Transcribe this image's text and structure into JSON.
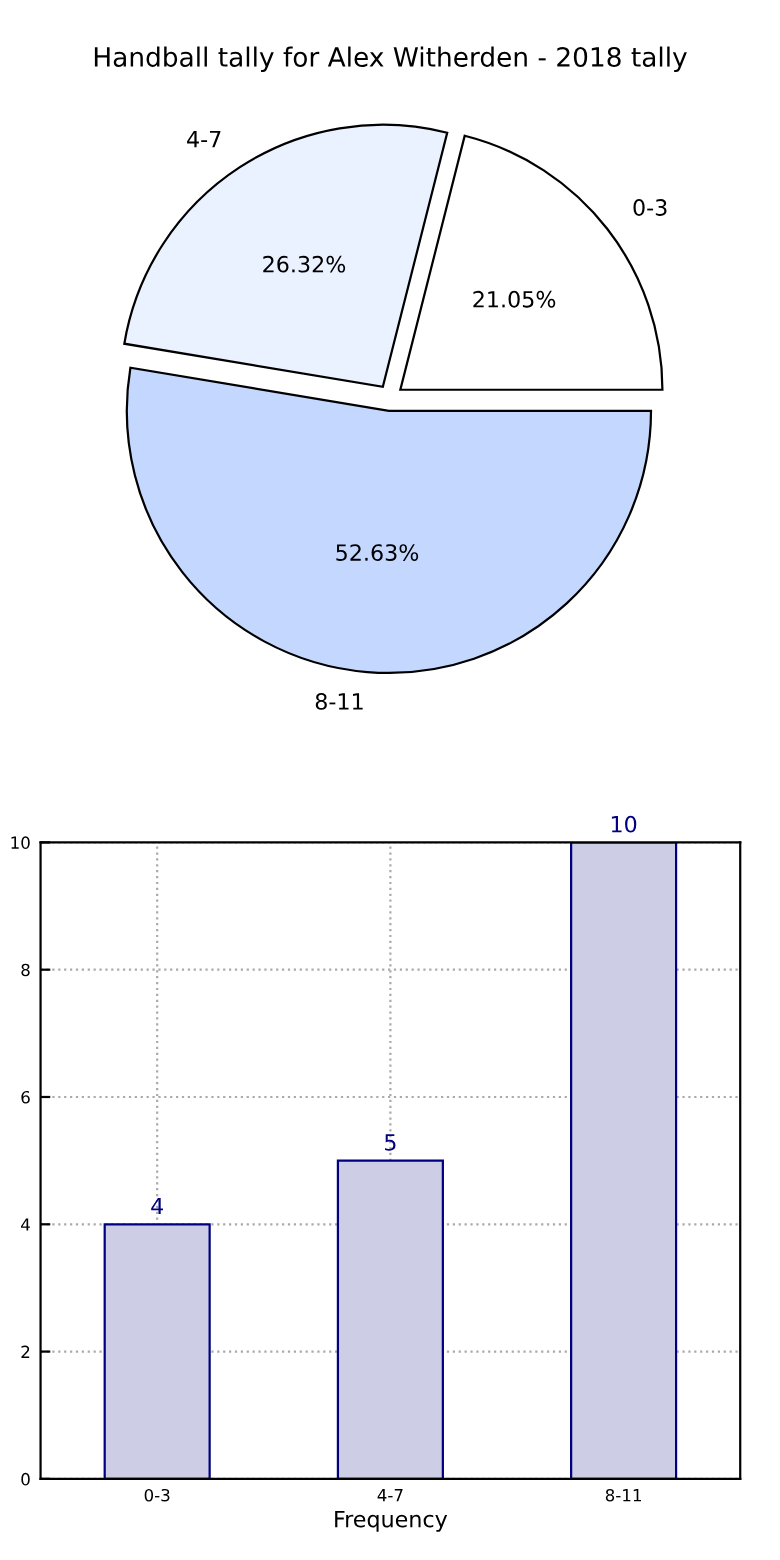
{
  "chart_data": [
    {
      "type": "pie",
      "title": "Handball tally for Alex Witherden - 2018 tally",
      "categories": [
        "0-3",
        "4-7",
        "8-11"
      ],
      "values": [
        21.05,
        26.32,
        52.63
      ],
      "value_labels": [
        "21.05%",
        "26.32%",
        "52.63%"
      ],
      "colors": [
        "#ffffff",
        "#eaf1ff",
        "#c4d8ff"
      ]
    },
    {
      "type": "bar",
      "xlabel": "Frequency",
      "categories": [
        "0-3",
        "4-7",
        "8-11"
      ],
      "values": [
        4,
        5,
        10
      ],
      "color": "#cdcde5",
      "ylim": [
        0,
        10
      ],
      "yticks": [
        0,
        2,
        4,
        6,
        8,
        10
      ],
      "grid": true,
      "data_labels": true
    }
  ]
}
